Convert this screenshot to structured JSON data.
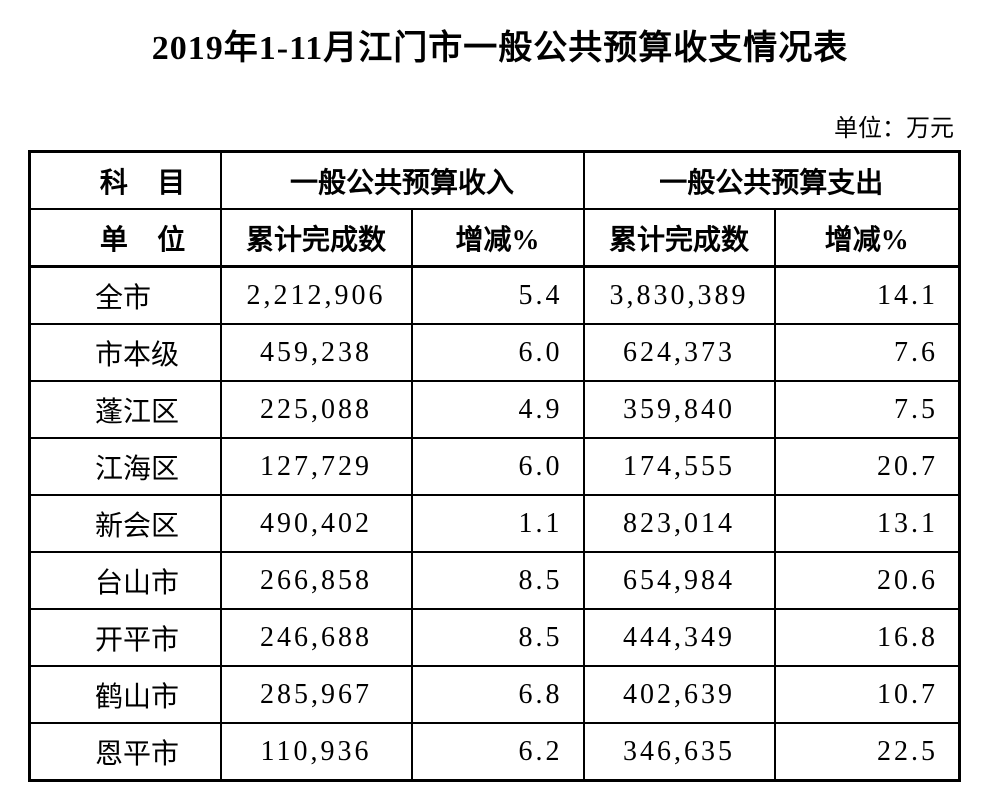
{
  "title": "2019年1-11月江门市一般公共预算收支情况表",
  "unit_note": "单位：万元",
  "colors": {
    "text": "#000000",
    "background": "#ffffff",
    "border": "#000000"
  },
  "table": {
    "header": {
      "subject": "科目",
      "unit": "单位",
      "income_group": "一般公共预算收入",
      "expenditure_group": "一般公共预算支出",
      "cumulative": "累计完成数",
      "change": "增减%"
    },
    "rows": [
      {
        "name": "全市",
        "income": "2,212,906",
        "income_change": "5.4",
        "expenditure": "3,830,389",
        "expenditure_change": "14.1"
      },
      {
        "name": "市本级",
        "income": "459,238",
        "income_change": "6.0",
        "expenditure": "624,373",
        "expenditure_change": "7.6"
      },
      {
        "name": "蓬江区",
        "income": "225,088",
        "income_change": "4.9",
        "expenditure": "359,840",
        "expenditure_change": "7.5"
      },
      {
        "name": "江海区",
        "income": "127,729",
        "income_change": "6.0",
        "expenditure": "174,555",
        "expenditure_change": "20.7"
      },
      {
        "name": "新会区",
        "income": "490,402",
        "income_change": "1.1",
        "expenditure": "823,014",
        "expenditure_change": "13.1"
      },
      {
        "name": "台山市",
        "income": "266,858",
        "income_change": "8.5",
        "expenditure": "654,984",
        "expenditure_change": "20.6"
      },
      {
        "name": "开平市",
        "income": "246,688",
        "income_change": "8.5",
        "expenditure": "444,349",
        "expenditure_change": "16.8"
      },
      {
        "name": "鹤山市",
        "income": "285,967",
        "income_change": "6.8",
        "expenditure": "402,639",
        "expenditure_change": "10.7"
      },
      {
        "name": "恩平市",
        "income": "110,936",
        "income_change": "6.2",
        "expenditure": "346,635",
        "expenditure_change": "22.5"
      }
    ]
  }
}
